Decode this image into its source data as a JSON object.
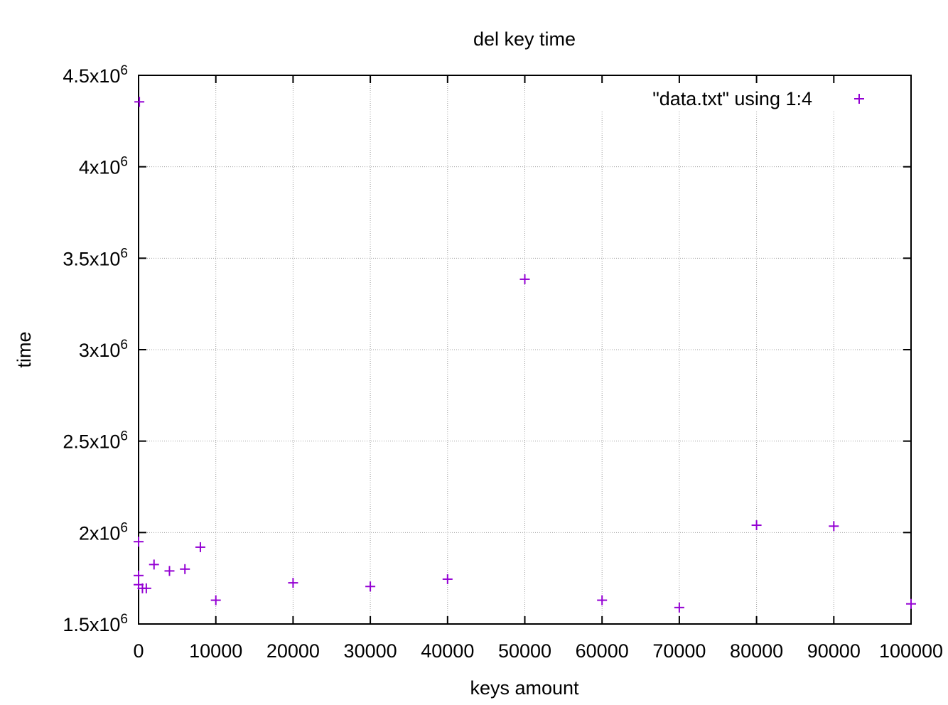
{
  "chart_data": {
    "type": "scatter",
    "title": "del key time",
    "xlabel": "keys amount",
    "ylabel": "time",
    "xlim": [
      0,
      100000
    ],
    "ylim": [
      1500000,
      4500000
    ],
    "x_ticks": [
      {
        "value": 0,
        "label": "0"
      },
      {
        "value": 10000,
        "label": "10000"
      },
      {
        "value": 20000,
        "label": "20000"
      },
      {
        "value": 30000,
        "label": "30000"
      },
      {
        "value": 40000,
        "label": "40000"
      },
      {
        "value": 50000,
        "label": "50000"
      },
      {
        "value": 60000,
        "label": "60000"
      },
      {
        "value": 70000,
        "label": "70000"
      },
      {
        "value": 80000,
        "label": "80000"
      },
      {
        "value": 90000,
        "label": "90000"
      },
      {
        "value": 100000,
        "label": "100000"
      }
    ],
    "y_ticks": [
      {
        "value": 1500000,
        "mantissa": "1.5x10",
        "exponent": "6"
      },
      {
        "value": 2000000,
        "mantissa": "2x10",
        "exponent": "6"
      },
      {
        "value": 2500000,
        "mantissa": "2.5x10",
        "exponent": "6"
      },
      {
        "value": 3000000,
        "mantissa": "3x10",
        "exponent": "6"
      },
      {
        "value": 3500000,
        "mantissa": "3.5x10",
        "exponent": "6"
      },
      {
        "value": 4000000,
        "mantissa": "4x10",
        "exponent": "6"
      },
      {
        "value": 4500000,
        "mantissa": "4.5x10",
        "exponent": "6"
      }
    ],
    "grid": true,
    "legend_position": "top-right",
    "series": [
      {
        "name": "\"data.txt\" using 1:4",
        "color": "#9400d3",
        "marker": "plus",
        "points": [
          {
            "x": 0,
            "y": 1765000
          },
          {
            "x": 0,
            "y": 1715000
          },
          {
            "x": 0,
            "y": 1950000
          },
          {
            "x": 100,
            "y": 4355000
          },
          {
            "x": 500,
            "y": 1695000
          },
          {
            "x": 1000,
            "y": 1695000
          },
          {
            "x": 2000,
            "y": 1825000
          },
          {
            "x": 4000,
            "y": 1790000
          },
          {
            "x": 6000,
            "y": 1800000
          },
          {
            "x": 8000,
            "y": 1920000
          },
          {
            "x": 10000,
            "y": 1630000
          },
          {
            "x": 20000,
            "y": 1725000
          },
          {
            "x": 30000,
            "y": 1705000
          },
          {
            "x": 40000,
            "y": 1745000
          },
          {
            "x": 50000,
            "y": 3385000
          },
          {
            "x": 60000,
            "y": 1630000
          },
          {
            "x": 70000,
            "y": 1590000
          },
          {
            "x": 80000,
            "y": 2040000
          },
          {
            "x": 90000,
            "y": 2035000
          },
          {
            "x": 100000,
            "y": 1610000
          }
        ]
      }
    ]
  }
}
